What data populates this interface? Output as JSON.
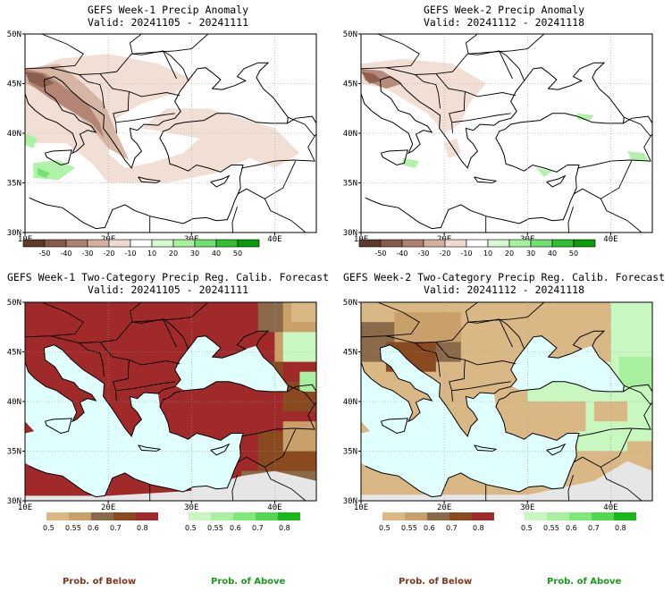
{
  "panels": [
    {
      "title": "GEFS Week-1 Precip Anomaly",
      "valid": "Valid: 20241105 - 20241111"
    },
    {
      "title": "GEFS Week-2 Precip Anomaly",
      "valid": "Valid: 20241112 - 20241118"
    },
    {
      "title": "GEFS Week-1 Two-Category Precip Reg. Calib. Forecast",
      "valid": "Valid: 20241105 - 20241111"
    },
    {
      "title": "GEFS Week-2 Two-Category Precip Reg. Calib. Forecast",
      "valid": "Valid: 20241112 - 20241118"
    }
  ],
  "axes": {
    "lat_labels": [
      "50N",
      "45N",
      "40N",
      "35N",
      "30N"
    ],
    "lon_labels": [
      "10E",
      "20E",
      "30E",
      "40E"
    ]
  },
  "anomaly_colorbar": {
    "labels": [
      "-50",
      "-40",
      "-30",
      "-20",
      "-10",
      "10",
      "20",
      "30",
      "40",
      "50"
    ],
    "colors": [
      "#5c3a2e",
      "#8a5a4a",
      "#b08070",
      "#d3b0a0",
      "#efdcd0",
      "#ffffff",
      "#d8f8d0",
      "#a8f0a0",
      "#70e070",
      "#30c030",
      "#0a9a0a"
    ]
  },
  "prob_colorbars": {
    "below": {
      "labels": [
        "0.5",
        "0.55",
        "0.6",
        "0.7",
        "0.8"
      ],
      "colors": [
        "#d9b886",
        "#c9a06a",
        "#8a6a48",
        "#8a4a20",
        "#a02a2a"
      ]
    },
    "above": {
      "labels": [
        "0.5",
        "0.55",
        "0.6",
        "0.7",
        "0.8"
      ],
      "colors": [
        "#c8f8c0",
        "#a8f0a0",
        "#80e878",
        "#50d850",
        "#18b818"
      ]
    }
  },
  "legend": {
    "below": "Prob. of Below",
    "above": "Prob. of Above"
  },
  "colors": {
    "below_text": "#7a3a1a",
    "above_text": "#1a9a1a",
    "sea": "#e0ffff",
    "nodata": "#e6e6e6"
  }
}
